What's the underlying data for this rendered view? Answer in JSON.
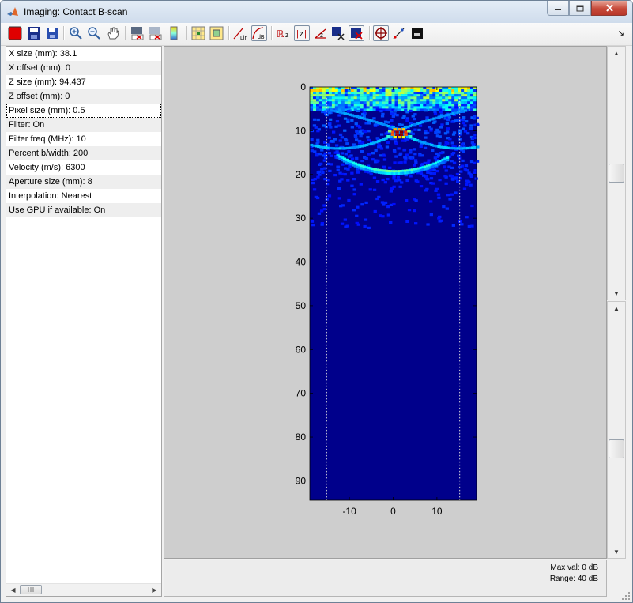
{
  "window": {
    "title": "Imaging: Contact B-scan",
    "controls": {
      "minimize": "–",
      "maximize": "□",
      "close": "✕"
    }
  },
  "toolbar": {
    "buttons": [
      {
        "id": "record",
        "icon": "red-square-icon"
      },
      {
        "id": "save-multi",
        "icon": "floppy-multi-icon"
      },
      {
        "id": "save",
        "icon": "floppy-icon"
      },
      {
        "id": "zoom-in",
        "icon": "zoom-in-icon"
      },
      {
        "id": "zoom-out",
        "icon": "zoom-out-icon"
      },
      {
        "id": "pan",
        "icon": "hand-icon"
      },
      {
        "id": "image-a",
        "icon": "image-dark-icon"
      },
      {
        "id": "image-b",
        "icon": "image-light-icon"
      },
      {
        "id": "colorbar",
        "icon": "colorbar-icon"
      },
      {
        "id": "grid-a",
        "icon": "grid-icon"
      },
      {
        "id": "grid-b",
        "icon": "grid-point-icon"
      },
      {
        "id": "linear",
        "icon": "linear-scale-icon",
        "label": "Lin"
      },
      {
        "id": "db",
        "icon": "db-scale-icon",
        "label": "dB"
      },
      {
        "id": "rz",
        "icon": "rz-icon",
        "label": "Rz"
      },
      {
        "id": "absz",
        "icon": "abs-z-icon",
        "label": "|z|"
      },
      {
        "id": "angle",
        "icon": "angle-icon",
        "label": "∠"
      },
      {
        "id": "layer-x",
        "icon": "layer-x-icon"
      },
      {
        "id": "layer-excl",
        "icon": "layer-excl-icon"
      },
      {
        "id": "crosshair",
        "icon": "crosshair-icon"
      },
      {
        "id": "probe",
        "icon": "probe-icon"
      },
      {
        "id": "darkmode",
        "icon": "dark-image-icon"
      }
    ],
    "dock_arrow": "↘"
  },
  "properties": [
    "X size (mm): 38.1",
    "X offset (mm): 0",
    "Z size (mm): 94.437",
    "Z offset (mm): 0",
    "Pixel size (mm): 0.5",
    "Filter: On",
    "Filter freq (MHz): 10",
    "Percent b/width: 200",
    "Velocity (m/s): 6300",
    "Aperture size (mm): 8",
    "Interpolation: Nearest",
    "Use GPU if available: On"
  ],
  "selected_property_index": 4,
  "plot": {
    "x_ticks": [
      "-10",
      "0",
      "10"
    ],
    "y_ticks": [
      "0",
      "10",
      "20",
      "30",
      "40",
      "50",
      "60",
      "70",
      "80",
      "90"
    ],
    "colors": {
      "background": "#00008b",
      "plot_bg": "#cecece"
    }
  },
  "info": {
    "max_val": "Max val: 0 dB",
    "range": "Range: 40 dB"
  }
}
